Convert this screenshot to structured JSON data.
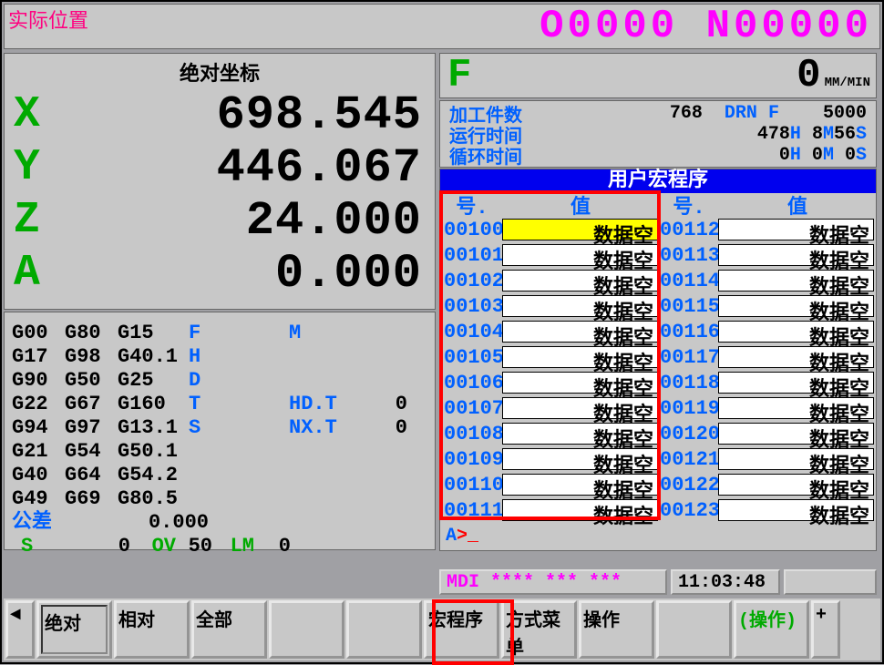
{
  "header": {
    "title": "实际位置",
    "program": "O0000 N00000"
  },
  "position": {
    "title": "绝对坐标",
    "axes": [
      {
        "label": "X",
        "value": "698.545"
      },
      {
        "label": "Y",
        "value": "446.067"
      },
      {
        "label": "Z",
        "value": "24.000"
      },
      {
        "label": "A",
        "value": "0.000"
      }
    ]
  },
  "feed": {
    "label": "F",
    "value": "0",
    "unit": "MM/MIN"
  },
  "info": {
    "parts_label": "加工件数",
    "parts_val": "768",
    "drn": "DRN",
    "drn_f": "F",
    "drn_val": "5000",
    "run_label": "运行时间",
    "run_val": "478H 8M56S",
    "cycle_label": "循环时间",
    "cycle_val": "0H 0M 0S"
  },
  "macro": {
    "title": "用户宏程序",
    "col_no": "号.",
    "col_val": "值",
    "empty": "数据空",
    "left_start": 100,
    "right_start": 112,
    "count": 12,
    "selected": "00100"
  },
  "prompt": {
    "a": "A",
    "caret": ">_"
  },
  "gcodes": {
    "rows": [
      [
        "G00",
        "G80",
        "G15",
        "F",
        "",
        "M",
        ""
      ],
      [
        "G17",
        "G98",
        "G40.1",
        "H",
        "",
        "",
        ""
      ],
      [
        "G90",
        "G50",
        "G25",
        "D",
        "",
        "",
        ""
      ],
      [
        "G22",
        "G67",
        "G160",
        "T",
        "",
        "HD.T",
        "0"
      ],
      [
        "G94",
        "G97",
        "G13.1",
        "S",
        "",
        "NX.T",
        "0"
      ],
      [
        "G21",
        "G54",
        "G50.1",
        "",
        "",
        "",
        ""
      ],
      [
        "G40",
        "G64",
        "G54.2",
        "",
        "",
        "",
        ""
      ],
      [
        "G49",
        "G69",
        "G80.5",
        "",
        "",
        "",
        ""
      ]
    ],
    "tolerance_label": "公差",
    "tolerance_val": "0.000",
    "s_label": "S",
    "s_val": "0",
    "ov_label": "OV",
    "ov_val": "50",
    "lm_label": "LM",
    "lm_val": "0"
  },
  "status": {
    "mode": "MDI",
    "stars": "**** *** ***",
    "time": "11:03:48"
  },
  "softkeys": {
    "left_arrow": "◄",
    "k1": "绝对",
    "k2": "相对",
    "k3": "全部",
    "k4": "",
    "k5": "",
    "k6": "宏程序",
    "k7": "方式菜单",
    "k8": "操作",
    "k9": "",
    "k10": "(操作)",
    "right_plus": "+"
  },
  "colors": {
    "magenta": "#ff00ff",
    "green": "#00aa00",
    "blue": "#0060ff",
    "red": "#ff0000",
    "yellow": "#ffff00",
    "bg": "#c8c8c8"
  }
}
